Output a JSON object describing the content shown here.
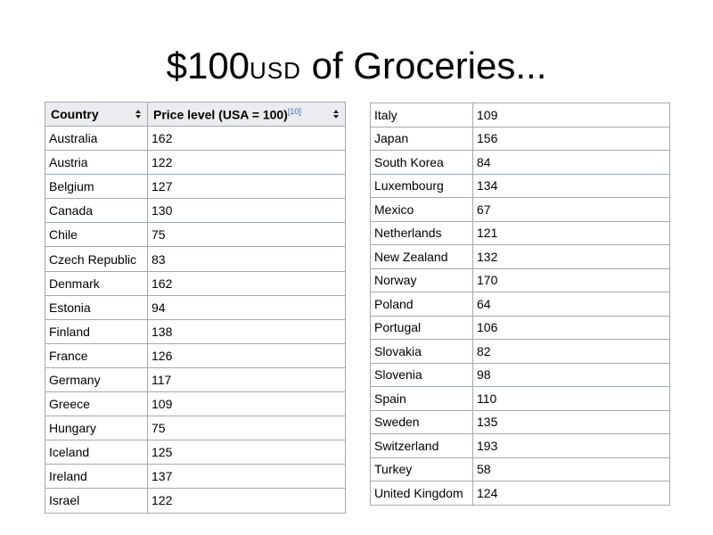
{
  "title": {
    "amount": "$100",
    "currency": "USD",
    "rest": " of Groceries..."
  },
  "table_left": {
    "headers": {
      "country": "Country",
      "price": "Price level (USA = 100)",
      "ref": "[10]"
    },
    "rows": [
      {
        "country": "Australia",
        "price": "162"
      },
      {
        "country": "Austria",
        "price": "122"
      },
      {
        "country": "Belgium",
        "price": "127"
      },
      {
        "country": "Canada",
        "price": "130"
      },
      {
        "country": "Chile",
        "price": "75"
      },
      {
        "country": "Czech Republic",
        "price": "83"
      },
      {
        "country": "Denmark",
        "price": "162"
      },
      {
        "country": "Estonia",
        "price": "94"
      },
      {
        "country": "Finland",
        "price": "138"
      },
      {
        "country": "France",
        "price": "126"
      },
      {
        "country": "Germany",
        "price": "117"
      },
      {
        "country": "Greece",
        "price": "109"
      },
      {
        "country": "Hungary",
        "price": "75"
      },
      {
        "country": "Iceland",
        "price": "125"
      },
      {
        "country": "Ireland",
        "price": "137"
      },
      {
        "country": "Israel",
        "price": "122"
      }
    ]
  },
  "table_right": {
    "rows": [
      {
        "country": "Italy",
        "price": "109"
      },
      {
        "country": "Japan",
        "price": "156"
      },
      {
        "country": "South Korea",
        "price": "84"
      },
      {
        "country": "Luxembourg",
        "price": "134"
      },
      {
        "country": "Mexico",
        "price": "67"
      },
      {
        "country": "Netherlands",
        "price": "121"
      },
      {
        "country": "New Zealand",
        "price": "132"
      },
      {
        "country": "Norway",
        "price": "170"
      },
      {
        "country": "Poland",
        "price": "64"
      },
      {
        "country": "Portugal",
        "price": "106"
      },
      {
        "country": "Slovakia",
        "price": "82"
      },
      {
        "country": "Slovenia",
        "price": "98"
      },
      {
        "country": "Spain",
        "price": "110"
      },
      {
        "country": "Sweden",
        "price": "135"
      },
      {
        "country": "Switzerland",
        "price": "193"
      },
      {
        "country": "Turkey",
        "price": "58"
      },
      {
        "country": "United Kingdom",
        "price": "124"
      }
    ]
  },
  "icons": {
    "sort": "sort-arrows-icon"
  }
}
